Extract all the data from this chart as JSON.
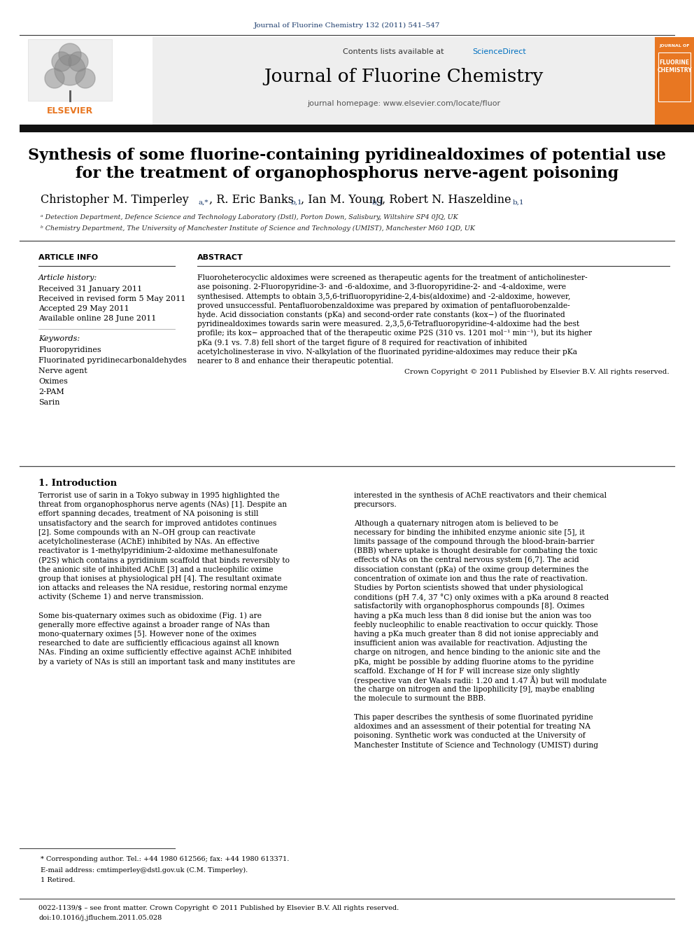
{
  "journal_ref": "Journal of Fluorine Chemistry 132 (2011) 541–547",
  "contents_text": "Contents lists available at ",
  "sciencedirect_text": "ScienceDirect",
  "journal_title": "Journal of Fluorine Chemistry",
  "journal_homepage": "journal homepage: www.elsevier.com/locate/fluor",
  "paper_title_line1": "Synthesis of some fluorine-containing pyridinealdoximes of potential use",
  "paper_title_line2": "for the treatment of organophosphorus nerve-agent poisoning",
  "affil_a": "ᵃ Detection Department, Defence Science and Technology Laboratory (Dstl), Porton Down, Salisbury, Wiltshire SP4 0JQ, UK",
  "affil_b": "ᵇ Chemistry Department, The University of Manchester Institute of Science and Technology (UMIST), Manchester M60 1QD, UK",
  "article_info_header": "ARTICLE INFO",
  "abstract_header": "ABSTRACT",
  "article_history_label": "Article history:",
  "received": "Received 31 January 2011",
  "received_revised": "Received in revised form 5 May 2011",
  "accepted": "Accepted 29 May 2011",
  "available": "Available online 28 June 2011",
  "keywords_label": "Keywords:",
  "keywords": [
    "Fluoropyridines",
    "Fluorinated pyridinecarbonaldehydes",
    "Nerve agent",
    "Oximes",
    "2-PAM",
    "Sarin"
  ],
  "abstract_lines": [
    "Fluoroheterocyclic aldoximes were screened as therapeutic agents for the treatment of anticholinester-",
    "ase poisoning. 2-Fluoropyridine-3- and -6-aldoxime, and 3-fluoropyridine-2- and -4-aldoxime, were",
    "synthesised. Attempts to obtain 3,5,6-trifluoropyridine-2,4-bis(aldoxime) and -2-aldoxime, however,",
    "proved unsuccessful. Pentafluorobenzaldoxime was prepared by oximation of pentafluorobenzalde-",
    "hyde. Acid dissociation constants (pKa) and second-order rate constants (kox−) of the fluorinated",
    "pyridinealdoximes towards sarin were measured. 2,3,5,6-Tetrafluoropyridine-4-aldoxime had the best",
    "profile; its kox− approached that of the therapeutic oxime P2S (310 vs. 1201 mol⁻¹ min⁻¹), but its higher",
    "pKa (9.1 vs. 7.8) fell short of the target figure of 8 required for reactivation of inhibited",
    "acetylcholinesterase in vivo. N-alkylation of the fluorinated pyridine-aldoximes may reduce their pKa",
    "nearer to 8 and enhance their therapeutic potential."
  ],
  "copyright_text": "Crown Copyright © 2011 Published by Elsevier B.V. All rights reserved.",
  "intro_header": "1. Introduction",
  "intro_left_lines": [
    "Terrorist use of sarin in a Tokyo subway in 1995 highlighted the",
    "threat from organophosphorus nerve agents (NAs) [1]. Despite an",
    "effort spanning decades, treatment of NA poisoning is still",
    "unsatisfactory and the search for improved antidotes continues",
    "[2]. Some compounds with an N–OH group can reactivate",
    "acetylcholinesterase (AChE) inhibited by NAs. An effective",
    "reactivator is 1-methylpyridinium-2-aldoxime methanesulfonate",
    "(P2S) which contains a pyridinium scaffold that binds reversibly to",
    "the anionic site of inhibited AChE [3] and a nucleophilic oxime",
    "group that ionises at physiological pH [4]. The resultant oximate",
    "ion attacks and releases the NA residue, restoring normal enzyme",
    "activity (Scheme 1) and nerve transmission.",
    "",
    "Some bis-quaternary oximes such as obidoxime (Fig. 1) are",
    "generally more effective against a broader range of NAs than",
    "mono-quaternary oximes [5]. However none of the oximes",
    "researched to date are sufficiently efficacious against all known",
    "NAs. Finding an oxime sufficiently effective against AChE inhibited",
    "by a variety of NAs is still an important task and many institutes are"
  ],
  "intro_right_lines": [
    "interested in the synthesis of AChE reactivators and their chemical",
    "precursors.",
    "",
    "Although a quaternary nitrogen atom is believed to be",
    "necessary for binding the inhibited enzyme anionic site [5], it",
    "limits passage of the compound through the blood-brain-barrier",
    "(BBB) where uptake is thought desirable for combating the toxic",
    "effects of NAs on the central nervous system [6,7]. The acid",
    "dissociation constant (pKa) of the oxime group determines the",
    "concentration of oximate ion and thus the rate of reactivation.",
    "Studies by Porton scientists showed that under physiological",
    "conditions (pH 7.4, 37 °C) only oximes with a pKa around 8 reacted",
    "satisfactorily with organophosphorus compounds [8]. Oximes",
    "having a pKa much less than 8 did ionise but the anion was too",
    "feebly nucleophilic to enable reactivation to occur quickly. Those",
    "having a pKa much greater than 8 did not ionise appreciably and",
    "insufficient anion was available for reactivation. Adjusting the",
    "charge on nitrogen, and hence binding to the anionic site and the",
    "pKa, might be possible by adding fluorine atoms to the pyridine",
    "scaffold. Exchange of H for F will increase size only slightly",
    "(respective van der Waals radii: 1.20 and 1.47 Å) but will modulate",
    "the charge on nitrogen and the lipophilicity [9], maybe enabling",
    "the molecule to surmount the BBB.",
    "",
    "This paper describes the synthesis of some fluorinated pyridine",
    "aldoximes and an assessment of their potential for treating NA",
    "poisoning. Synthetic work was conducted at the University of",
    "Manchester Institute of Science and Technology (UMIST) during"
  ],
  "footnote_star": "* Corresponding author. Tel.: +44 1980 612566; fax: +44 1980 613371.",
  "footnote_email": "E-mail address: cmtimperley@dstl.gov.uk (C.M. Timperley).",
  "footnote_1": "1 Retired.",
  "bottom_issn": "0022-1139/$ – see front matter. Crown Copyright © 2011 Published by Elsevier B.V. All rights reserved.",
  "bottom_doi": "doi:10.1016/j.jfluchem.2011.05.028",
  "bg_color": "#ffffff",
  "orange_color": "#e87722",
  "blue_link": "#0070c0",
  "dark_blue": "#1a3a6b",
  "black": "#000000"
}
